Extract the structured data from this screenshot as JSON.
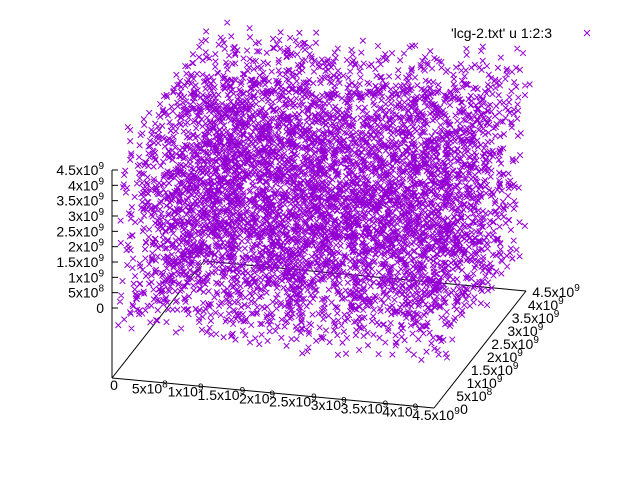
{
  "chart_data": {
    "type": "scatter",
    "dimensions": 3,
    "series": [
      {
        "name": "'lcg-2.txt' u 1:2:3",
        "color": "#9400d3",
        "marker": "x-cross",
        "point_count": 6000
      }
    ],
    "xlim": [
      0,
      4500000000
    ],
    "ylim": [
      0,
      4500000000
    ],
    "zlim": [
      0,
      4500000000
    ],
    "x_ticks": [
      {
        "value": 0,
        "base": "0",
        "exp": ""
      },
      {
        "value": 500000000,
        "base": "5x10",
        "exp": "8"
      },
      {
        "value": 1000000000,
        "base": "1x10",
        "exp": "9"
      },
      {
        "value": 1500000000,
        "base": "1.5x10",
        "exp": "9"
      },
      {
        "value": 2000000000,
        "base": "2x10",
        "exp": "9"
      },
      {
        "value": 2500000000,
        "base": "2.5x10",
        "exp": "9"
      },
      {
        "value": 3000000000,
        "base": "3x10",
        "exp": "9"
      },
      {
        "value": 3500000000,
        "base": "3.5x10",
        "exp": "9"
      },
      {
        "value": 4000000000,
        "base": "4x10",
        "exp": "9"
      },
      {
        "value": 4500000000,
        "base": "4.5x10",
        "exp": "9"
      }
    ],
    "y_ticks": [
      {
        "value": 0,
        "base": "0",
        "exp": ""
      },
      {
        "value": 500000000,
        "base": "5x10",
        "exp": "8"
      },
      {
        "value": 1000000000,
        "base": "1x10",
        "exp": "9"
      },
      {
        "value": 1500000000,
        "base": "1.5x10",
        "exp": "9"
      },
      {
        "value": 2000000000,
        "base": "2x10",
        "exp": "9"
      },
      {
        "value": 2500000000,
        "base": "2.5x10",
        "exp": "9"
      },
      {
        "value": 3000000000,
        "base": "3x10",
        "exp": "9"
      },
      {
        "value": 3500000000,
        "base": "3.5x10",
        "exp": "9"
      },
      {
        "value": 4000000000,
        "base": "4x10",
        "exp": "9"
      },
      {
        "value": 4500000000,
        "base": "4.5x10",
        "exp": "9"
      }
    ],
    "z_ticks": [
      {
        "value": 0,
        "base": "0",
        "exp": ""
      },
      {
        "value": 500000000,
        "base": "5x10",
        "exp": "8"
      },
      {
        "value": 1000000000,
        "base": "1x10",
        "exp": "9"
      },
      {
        "value": 1500000000,
        "base": "1.5x10",
        "exp": "9"
      },
      {
        "value": 2000000000,
        "base": "2x10",
        "exp": "9"
      },
      {
        "value": 2500000000,
        "base": "2.5x10",
        "exp": "9"
      },
      {
        "value": 3000000000,
        "base": "3x10",
        "exp": "9"
      },
      {
        "value": 3500000000,
        "base": "3.5x10",
        "exp": "9"
      },
      {
        "value": 4000000000,
        "base": "4x10",
        "exp": "9"
      },
      {
        "value": 4500000000,
        "base": "4.5x10",
        "exp": "9"
      }
    ],
    "xlabel": "",
    "ylabel": "",
    "zlabel": "",
    "title": "",
    "grid": false,
    "legend": "top-right"
  }
}
